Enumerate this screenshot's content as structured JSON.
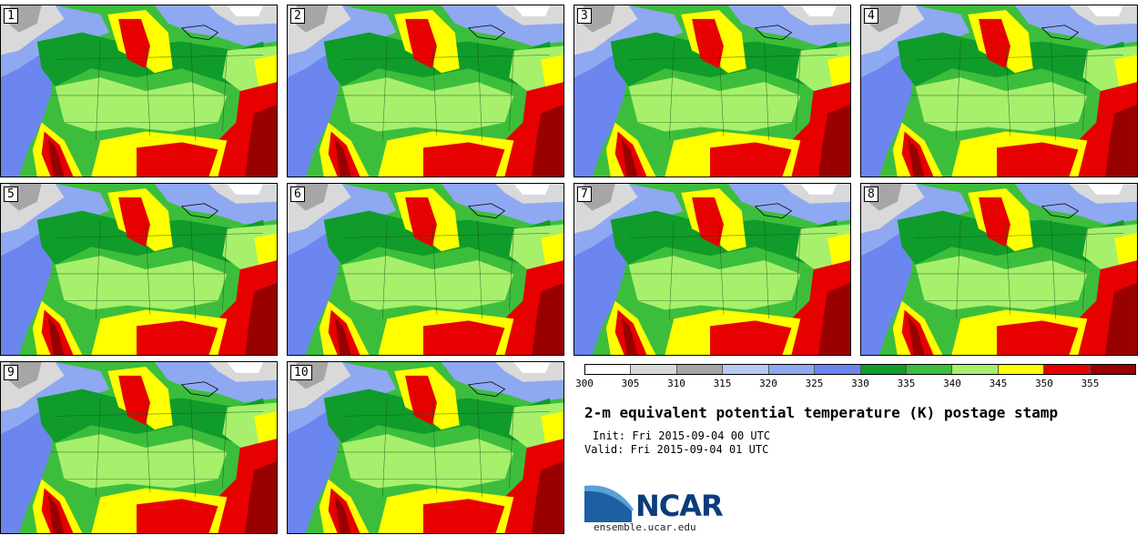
{
  "panels": [
    {
      "label": "1"
    },
    {
      "label": "2"
    },
    {
      "label": "3"
    },
    {
      "label": "4"
    },
    {
      "label": "5"
    },
    {
      "label": "6"
    },
    {
      "label": "7"
    },
    {
      "label": "8"
    },
    {
      "label": "9"
    },
    {
      "label": "10"
    }
  ],
  "colorbar": {
    "ticks": [
      "300",
      "305",
      "310",
      "315",
      "320",
      "325",
      "330",
      "335",
      "340",
      "345",
      "350",
      "355"
    ],
    "colors": [
      "#ffffff",
      "#d9d9d9",
      "#a6a6a6",
      "#b8c8f5",
      "#8fa8f2",
      "#6b86ee",
      "#0f9c2a",
      "#3cbe3c",
      "#a6f06c",
      "#ffff00",
      "#e60000",
      "#990000"
    ]
  },
  "title": "2-m equivalent potential temperature (K) postage stamp",
  "init": "Init: Fri 2015-09-04 00 UTC",
  "valid": "Valid: Fri 2015-09-04 01 UTC",
  "logo": {
    "text": "NCAR",
    "site": "ensemble.ucar.edu"
  }
}
